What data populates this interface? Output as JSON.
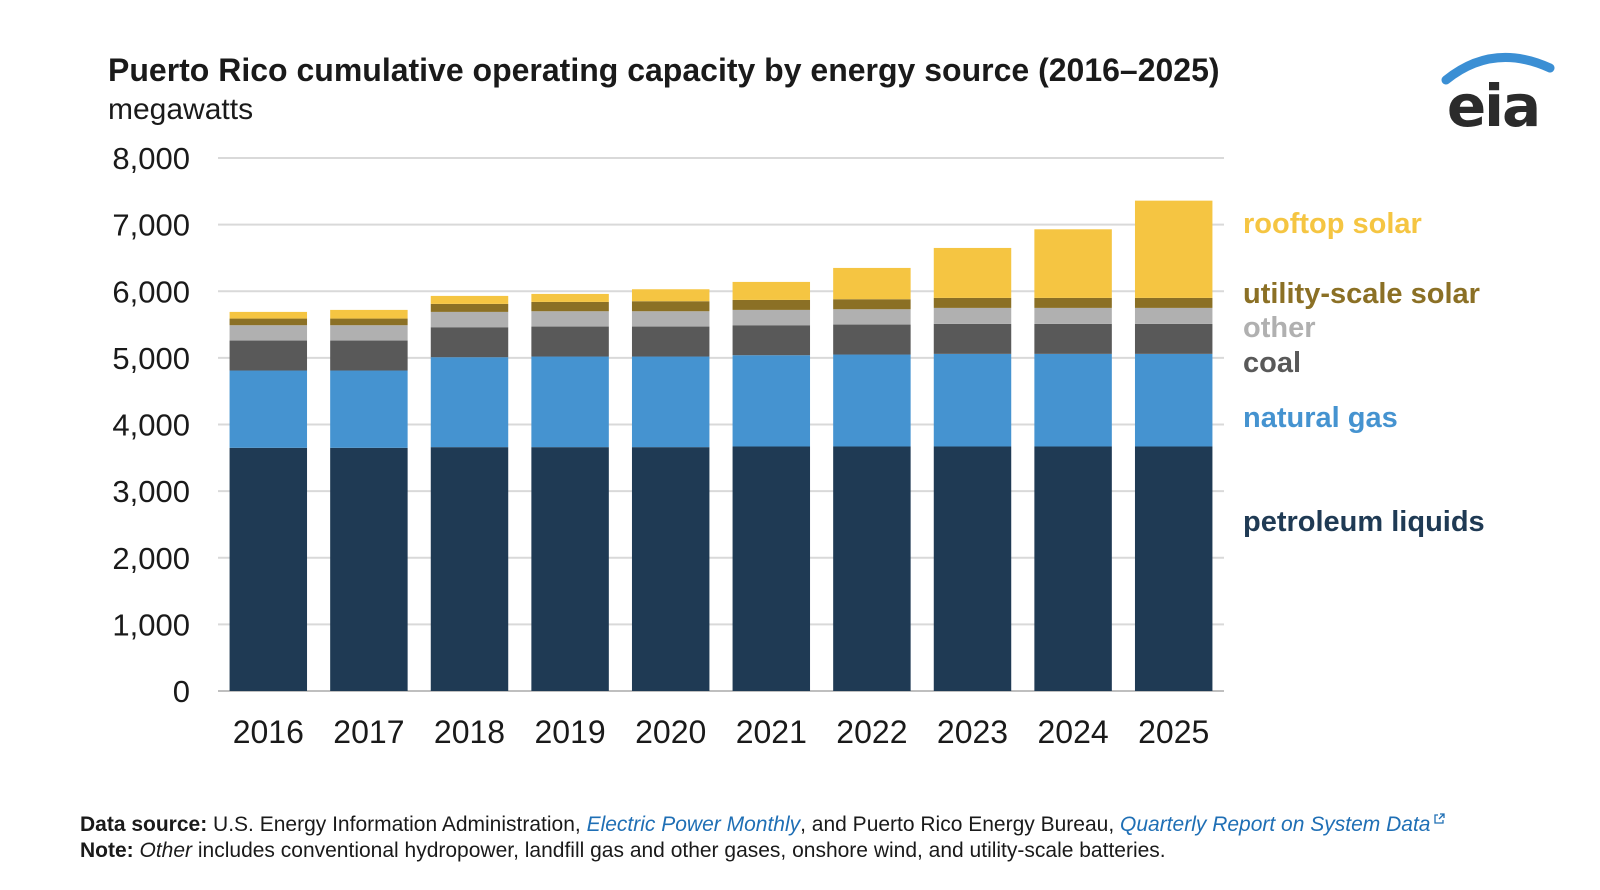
{
  "title": "Puerto Rico cumulative operating capacity by energy source (2016–2025)",
  "subtitle": "megawatts",
  "logo_text": "eia",
  "colors": {
    "petroleum_liquids": "#1f3a54",
    "natural_gas": "#4593d0",
    "coal": "#595959",
    "other": "#b0b0b0",
    "utility_scale_solar": "#8b7025",
    "rooftop_solar": "#f5c542",
    "gridline": "#d9d9d9",
    "logo_swoosh": "#3b8fd4"
  },
  "chart_data": {
    "type": "bar",
    "stacked": true,
    "title": "Puerto Rico cumulative operating capacity by energy source (2016–2025)",
    "ylabel": "megawatts",
    "xlabel": "",
    "ylim": [
      0,
      8000
    ],
    "yticks": [
      0,
      1000,
      2000,
      3000,
      4000,
      5000,
      6000,
      7000,
      8000
    ],
    "ytick_labels": [
      "0",
      "1,000",
      "2,000",
      "3,000",
      "4,000",
      "5,000",
      "6,000",
      "7,000",
      "8,000"
    ],
    "grid": true,
    "legend_position": "right",
    "categories": [
      "2016",
      "2017",
      "2018",
      "2019",
      "2020",
      "2021",
      "2022",
      "2023",
      "2024",
      "2025"
    ],
    "series": [
      {
        "name": "petroleum liquids",
        "key": "petroleum_liquids",
        "values": [
          3650,
          3650,
          3660,
          3660,
          3660,
          3670,
          3670,
          3670,
          3670,
          3670
        ]
      },
      {
        "name": "natural gas",
        "key": "natural_gas",
        "values": [
          1160,
          1160,
          1350,
          1360,
          1360,
          1370,
          1380,
          1390,
          1390,
          1390
        ]
      },
      {
        "name": "coal",
        "key": "coal",
        "values": [
          450,
          450,
          450,
          450,
          450,
          450,
          450,
          450,
          450,
          450
        ]
      },
      {
        "name": "other",
        "key": "other",
        "values": [
          230,
          230,
          230,
          230,
          230,
          230,
          230,
          240,
          240,
          240
        ]
      },
      {
        "name": "utility-scale solar",
        "key": "utility_scale_solar",
        "values": [
          100,
          100,
          120,
          140,
          150,
          150,
          150,
          150,
          150,
          150
        ]
      },
      {
        "name": "rooftop solar",
        "key": "rooftop_solar",
        "values": [
          100,
          130,
          120,
          120,
          180,
          270,
          470,
          750,
          1030,
          1460
        ]
      }
    ],
    "legend": [
      {
        "label": "rooftop solar",
        "key": "rooftop_solar"
      },
      {
        "label": "utility-scale solar",
        "key": "utility_scale_solar"
      },
      {
        "label": "other",
        "key": "other"
      },
      {
        "label": "coal",
        "key": "coal"
      },
      {
        "label": "natural gas",
        "key": "natural_gas"
      },
      {
        "label": "petroleum liquids",
        "key": "petroleum_liquids"
      }
    ]
  },
  "footer": {
    "source_label": "Data source:",
    "source_text_1": " U.S. Energy Information Administration, ",
    "source_link_1": "Electric Power Monthly",
    "source_text_2": ", and Puerto Rico Energy Bureau, ",
    "source_link_2": "Quarterly Report on System Data",
    "note_label": "Note:",
    "note_em": "Other",
    "note_text": " includes conventional hydropower, landfill gas and other gases, onshore wind, and utility-scale batteries."
  }
}
